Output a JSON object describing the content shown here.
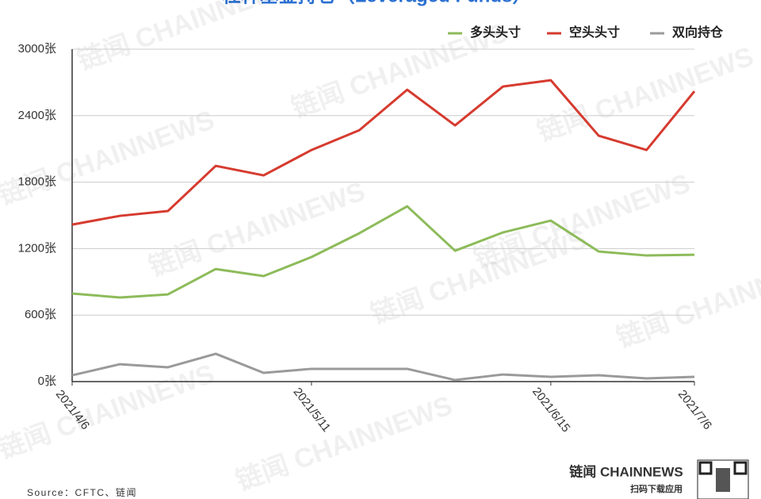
{
  "chart_data": {
    "type": "line",
    "title": "杠杆基金持仓（Leveraged Funds）",
    "categories": [
      "2021/4/6",
      null,
      null,
      null,
      null,
      "2021/5/11",
      null,
      null,
      null,
      null,
      "2021/6/15",
      null,
      null,
      "2021/7/6"
    ],
    "series": [
      {
        "name": "多头头寸",
        "color": "#8dbb5a",
        "values": [
          795,
          759,
          787,
          1016,
          952,
          1124,
          1339,
          1582,
          1181,
          1346,
          1453,
          1174,
          1138,
          1145
        ]
      },
      {
        "name": "空头头寸",
        "color": "#d63b2f",
        "values": [
          1417,
          1496,
          1539,
          1947,
          1861,
          2090,
          2269,
          2634,
          2312,
          2663,
          2720,
          2219,
          2090,
          2620
        ]
      },
      {
        "name": "双向持仓",
        "color": "#9a9a9a",
        "values": [
          57,
          157,
          129,
          251,
          79,
          115,
          115,
          115,
          14,
          64,
          43,
          57,
          29,
          43
        ]
      }
    ],
    "ylim": [
      0,
      3000
    ],
    "yticks": [
      {
        "value": 0,
        "label": "0张"
      },
      {
        "value": 600,
        "label": "600张"
      },
      {
        "value": 1200,
        "label": "1200张"
      },
      {
        "value": 1800,
        "label": "1800张"
      },
      {
        "value": 2400,
        "label": "2400张"
      },
      {
        "value": 3000,
        "label": "3000张"
      }
    ],
    "grid": true,
    "legend": "top-right",
    "source": "Source：CFTC、链闻",
    "watermark": "链闻 CHAINNEWS",
    "brand": "链闻 CHAINNEWS",
    "brand_sub": "扫码下载应用"
  }
}
